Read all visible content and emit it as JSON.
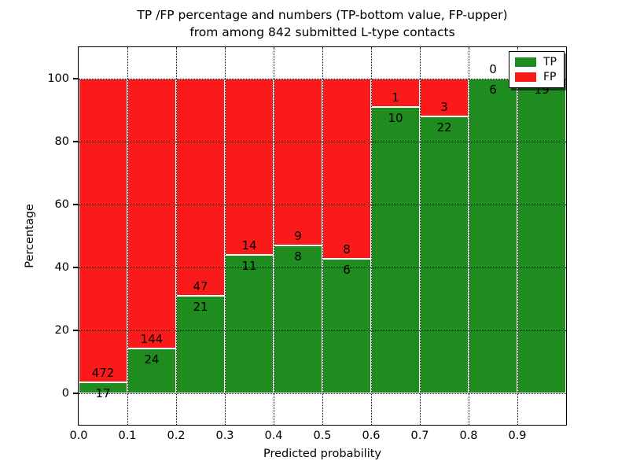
{
  "chart_data": {
    "type": "bar",
    "stacked": true,
    "title_lines": [
      "TP /FP percentage and numbers (TP-bottom value, FP-upper)",
      "from among 842 submitted L-type contacts"
    ],
    "xlabel": "Predicted probability",
    "ylabel": "Percentage",
    "total_submitted": 842,
    "x_tick_labels": [
      "0.0",
      "0.1",
      "0.2",
      "0.3",
      "0.4",
      "0.5",
      "0.6",
      "0.7",
      "0.8",
      "0.9"
    ],
    "y_ticks": [
      0,
      20,
      40,
      60,
      80,
      100
    ],
    "ylim": [
      -10,
      110
    ],
    "xlim": [
      0.0,
      1.0
    ],
    "grid": true,
    "legend_position": "upper-right",
    "colors": {
      "tp": "#1e8c1e",
      "fp": "#fb1a1a",
      "bar_edge": "#ffffff"
    },
    "legend": [
      {
        "label": "TP",
        "color": "#1e8c1e"
      },
      {
        "label": "FP",
        "color": "#fb1a1a"
      }
    ],
    "bins": [
      {
        "range": "0.0-0.1",
        "tp": 17,
        "fp": 472,
        "tp_label": "17",
        "fp_label": "472"
      },
      {
        "range": "0.1-0.2",
        "tp": 24,
        "fp": 144,
        "tp_label": "24",
        "fp_label": "144"
      },
      {
        "range": "0.2-0.3",
        "tp": 21,
        "fp": 47,
        "tp_label": "21",
        "fp_label": "47"
      },
      {
        "range": "0.3-0.4",
        "tp": 11,
        "fp": 14,
        "tp_label": "11",
        "fp_label": "14"
      },
      {
        "range": "0.4-0.5",
        "tp": 8,
        "fp": 9,
        "tp_label": "8",
        "fp_label": "9"
      },
      {
        "range": "0.5-0.6",
        "tp": 6,
        "fp": 8,
        "tp_label": "6",
        "fp_label": "8"
      },
      {
        "range": "0.6-0.7",
        "tp": 10,
        "fp": 1,
        "tp_label": "10",
        "fp_label": "1"
      },
      {
        "range": "0.7-0.8",
        "tp": 22,
        "fp": 3,
        "tp_label": "22",
        "fp_label": "3"
      },
      {
        "range": "0.8-0.9",
        "tp": 6,
        "fp": 0,
        "tp_label": "6",
        "fp_label": "0"
      },
      {
        "range": "0.9-1.0",
        "tp": 19,
        "fp": 0,
        "tp_label": "19",
        "fp_label": "0"
      }
    ]
  }
}
